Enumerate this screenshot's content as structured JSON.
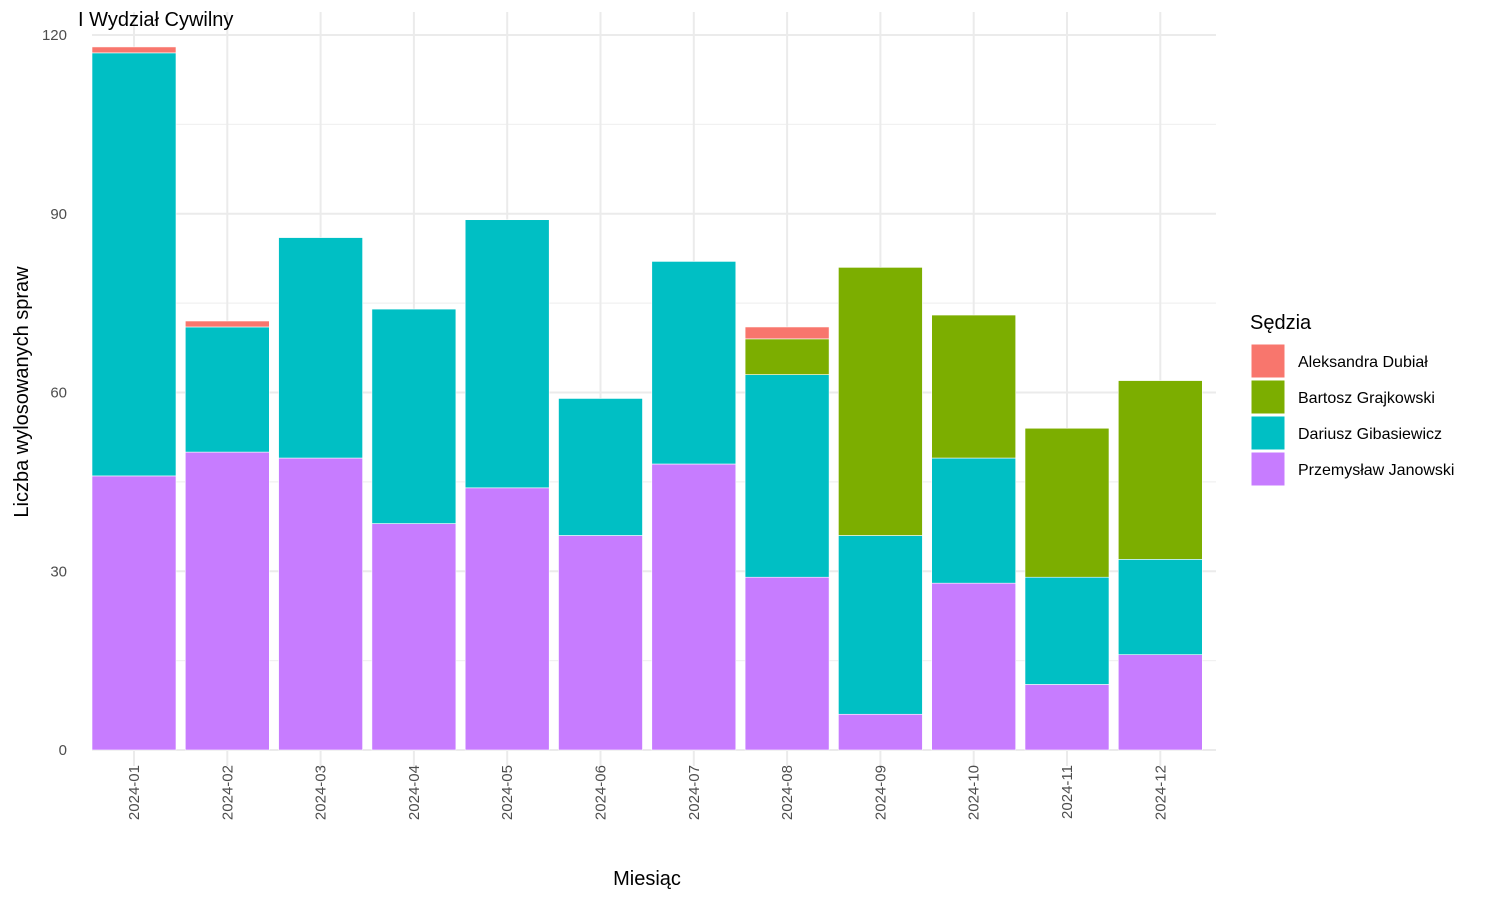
{
  "chart_data": {
    "type": "bar",
    "stacked": true,
    "title": "I Wydział Cywilny",
    "xlabel": "Miesiąc",
    "ylabel": "Liczba wylosowanych spraw",
    "ylim": [
      0,
      120
    ],
    "yticks": [
      0,
      30,
      60,
      90,
      120
    ],
    "grid": true,
    "legend_position": "right",
    "legend_title": "Sędzia",
    "categories": [
      "2024-01",
      "2024-02",
      "2024-03",
      "2024-04",
      "2024-05",
      "2024-06",
      "2024-07",
      "2024-08",
      "2024-09",
      "2024-10",
      "2024-11",
      "2024-12"
    ],
    "series": [
      {
        "name": "Aleksandra Dubiał",
        "color": "#F8766D",
        "values": [
          1,
          1,
          0,
          0,
          0,
          0,
          0,
          2,
          0,
          0,
          0,
          0
        ]
      },
      {
        "name": "Bartosz Grajkowski",
        "color": "#7CAE00",
        "values": [
          0,
          0,
          0,
          0,
          0,
          0,
          0,
          6,
          45,
          24,
          25,
          30
        ]
      },
      {
        "name": "Dariusz Gibasiewicz",
        "color": "#00BFC4",
        "values": [
          71,
          21,
          37,
          36,
          45,
          23,
          34,
          34,
          30,
          21,
          18,
          16
        ]
      },
      {
        "name": "Przemysław Janowski",
        "color": "#C77CFF",
        "values": [
          46,
          50,
          49,
          38,
          44,
          36,
          48,
          29,
          6,
          28,
          11,
          16
        ]
      }
    ]
  }
}
